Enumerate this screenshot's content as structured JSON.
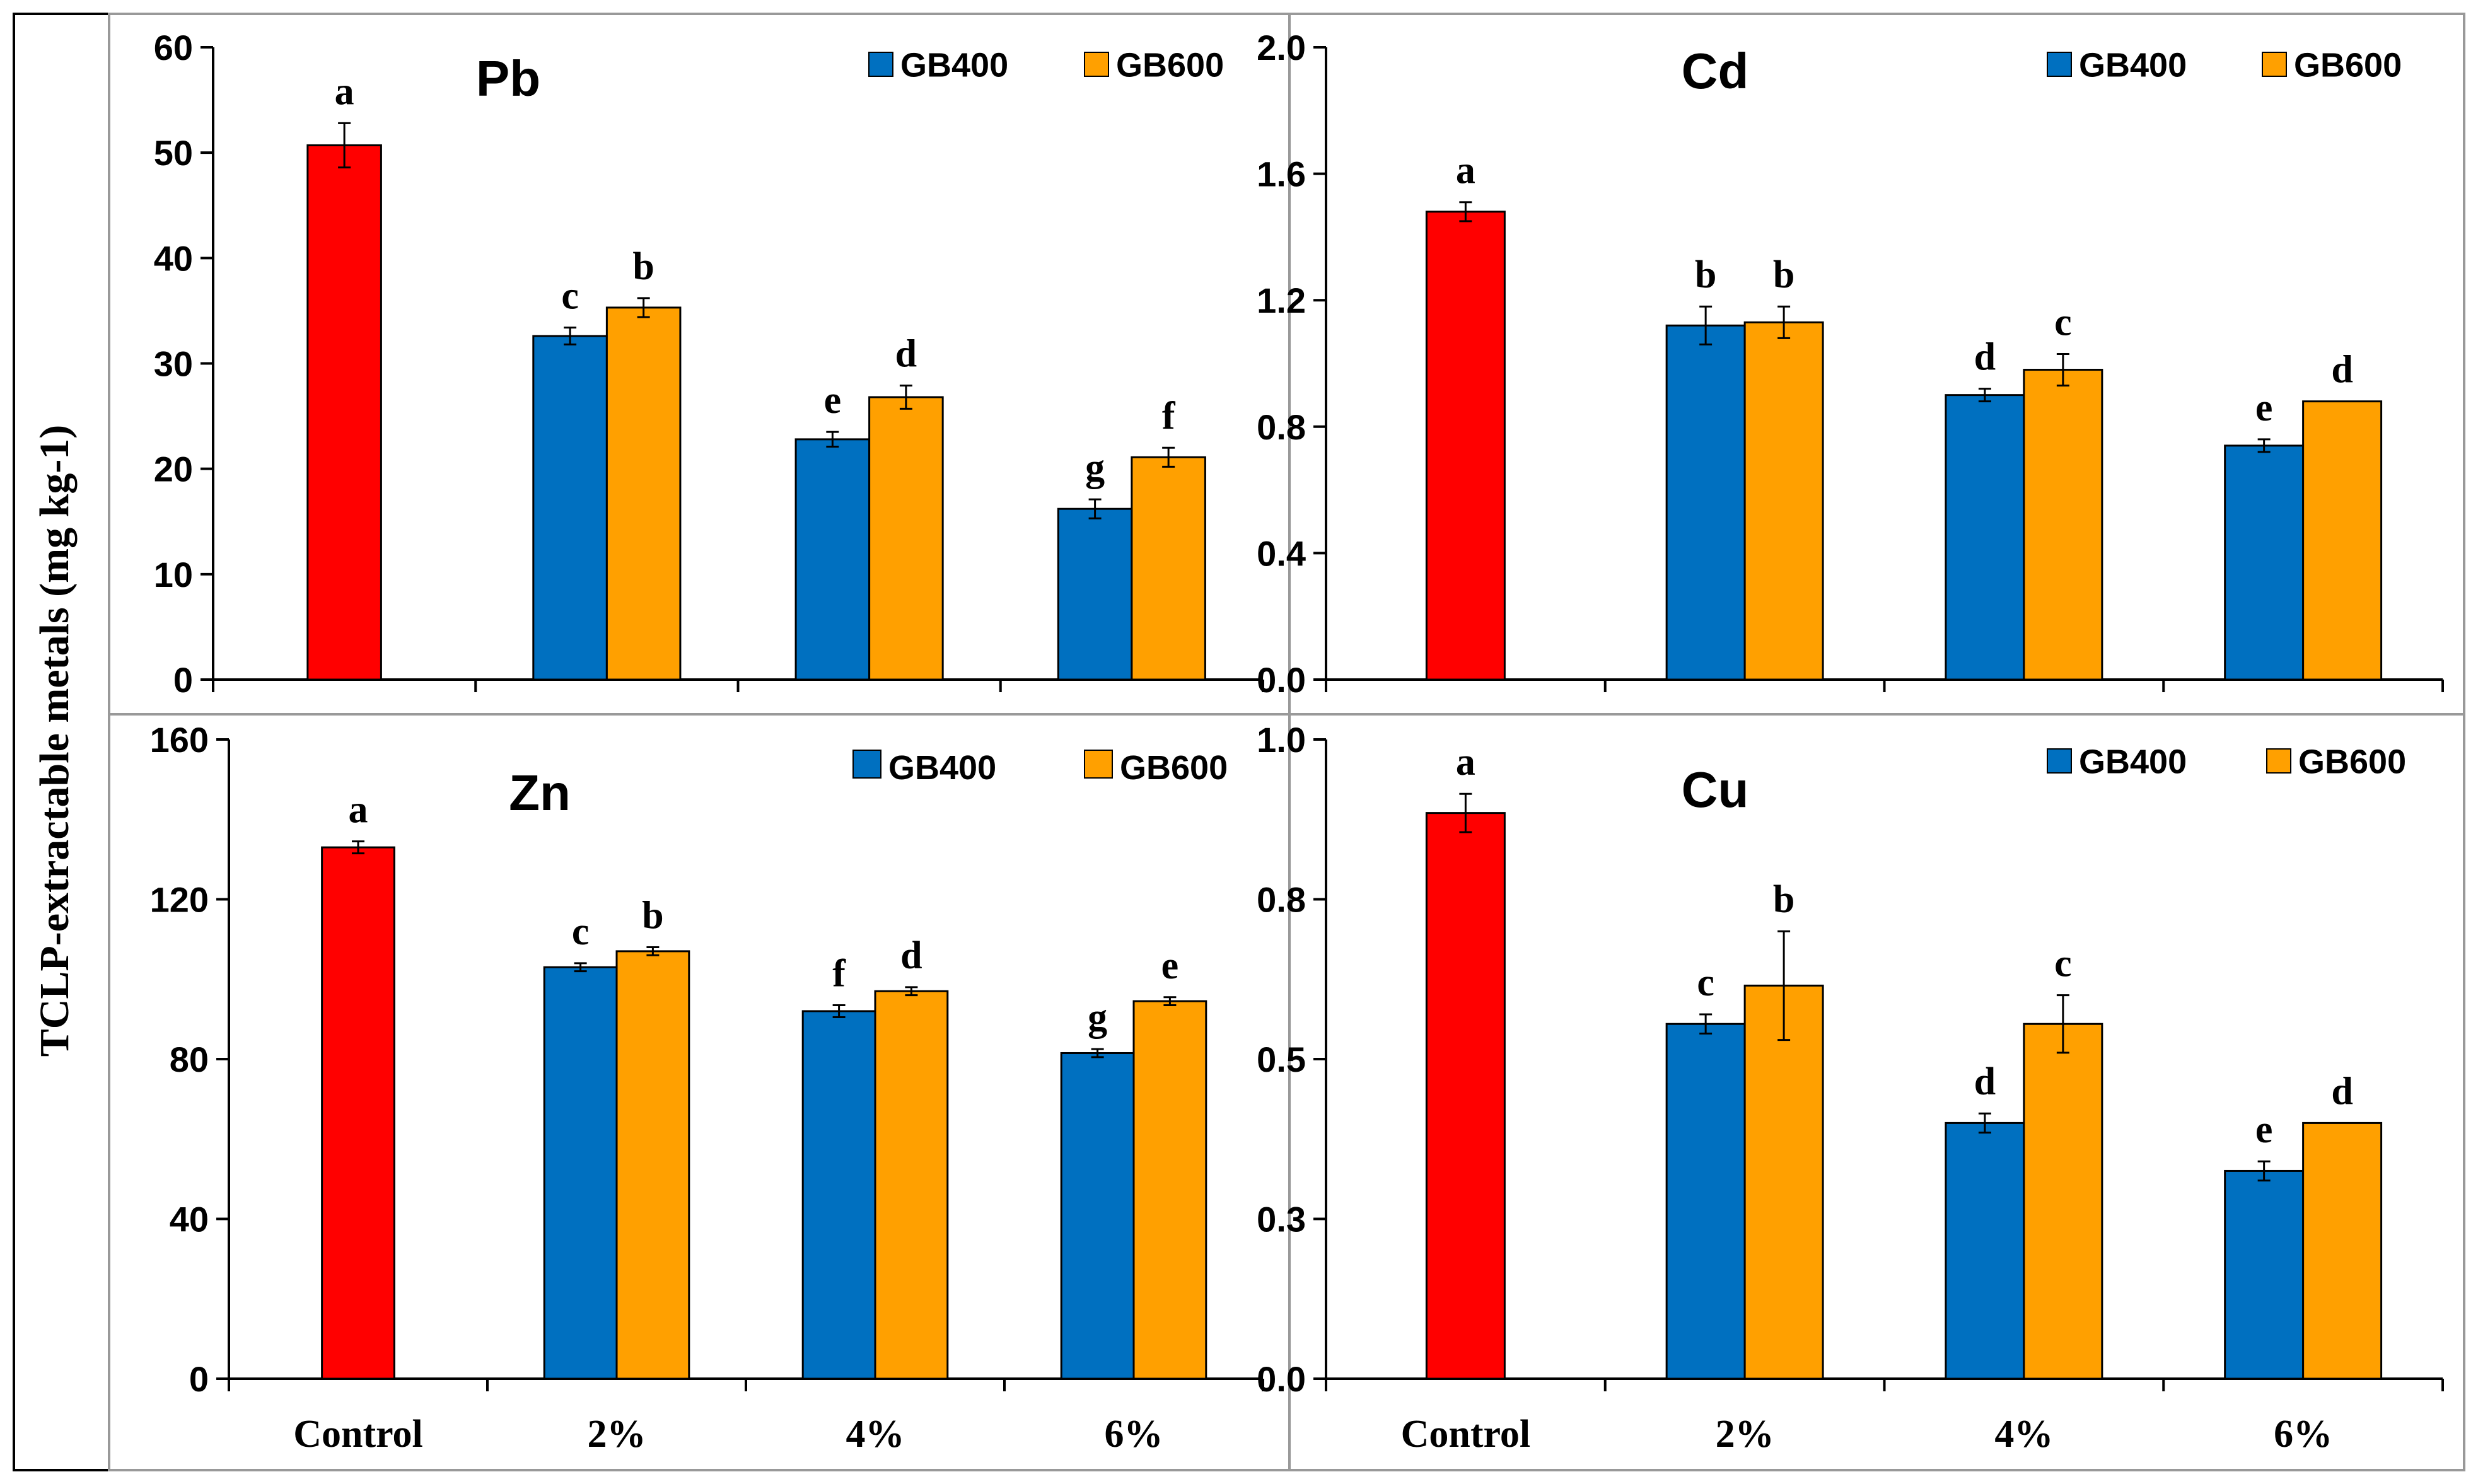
{
  "chart_data": {
    "type": "bar",
    "ylabel": "TCLP-extractable metals (mg kg-1)",
    "categories": [
      "Control",
      "2%",
      "4%",
      "6%"
    ],
    "legend": [
      "GB400",
      "GB600"
    ],
    "colors": {
      "control": "#ff0000",
      "GB400": "#0070c0",
      "GB600": "#ffa000"
    },
    "panels": [
      {
        "title": "Pb",
        "ylim": [
          0,
          60
        ],
        "ticks": [
          "0",
          "10",
          "20",
          "30",
          "40",
          "50",
          "60"
        ],
        "tick_values": [
          0,
          10,
          20,
          30,
          40,
          50,
          60
        ],
        "control": {
          "value": 50.7,
          "err": 2.1,
          "letter": "a"
        },
        "series": [
          {
            "name": "GB400",
            "values": [
              32.6,
              22.8,
              16.2
            ],
            "errors": [
              0.8,
              0.7,
              0.9
            ],
            "letters": [
              "c",
              "e",
              "g"
            ]
          },
          {
            "name": "GB600",
            "values": [
              35.3,
              26.8,
              21.1
            ],
            "errors": [
              0.9,
              1.1,
              0.9
            ],
            "letters": [
              "b",
              "d",
              "f"
            ]
          }
        ]
      },
      {
        "title": "Cd",
        "ylim": [
          0,
          2.0
        ],
        "ticks": [
          "0.0",
          "0.4",
          "0.8",
          "1.2",
          "1.6",
          "2.0"
        ],
        "tick_values": [
          0,
          0.4,
          0.8,
          1.2,
          1.6,
          2.0
        ],
        "control": {
          "value": 1.48,
          "err": 0.03,
          "letter": "a"
        },
        "series": [
          {
            "name": "GB400",
            "values": [
              1.12,
              0.9,
              0.74
            ],
            "errors": [
              0.06,
              0.02,
              0.02
            ],
            "letters": [
              "b",
              "d",
              "e"
            ]
          },
          {
            "name": "GB600",
            "values": [
              1.13,
              0.98,
              0.88
            ],
            "errors": [
              0.05,
              0.05,
              0.0
            ],
            "letters": [
              "b",
              "c",
              "d"
            ]
          }
        ]
      },
      {
        "title": "Zn",
        "ylim": [
          0,
          160
        ],
        "ticks": [
          "0",
          "40",
          "80",
          "120",
          "160"
        ],
        "tick_values": [
          0,
          40,
          80,
          120,
          160
        ],
        "control": {
          "value": 133,
          "err": 1.5,
          "letter": "a"
        },
        "series": [
          {
            "name": "GB400",
            "values": [
              103,
              92,
              81.5
            ],
            "errors": [
              1.0,
              1.5,
              1.0
            ],
            "letters": [
              "c",
              "f",
              "g"
            ]
          },
          {
            "name": "GB600",
            "values": [
              107,
              97,
              94.5
            ],
            "errors": [
              1.0,
              1.0,
              1.0
            ],
            "letters": [
              "b",
              "d",
              "e"
            ]
          }
        ]
      },
      {
        "title": "Cu",
        "ylim": [
          0,
          1.0
        ],
        "ticks": [
          "0.0",
          "0.3",
          "0.5",
          "0.8",
          "1.0"
        ],
        "tick_values": [
          0,
          0.25,
          0.5,
          0.75,
          1.0
        ],
        "control": {
          "value": 0.885,
          "err": 0.03,
          "letter": "a"
        },
        "series": [
          {
            "name": "GB400",
            "values": [
              0.555,
              0.4,
              0.325
            ],
            "errors": [
              0.015,
              0.015,
              0.015
            ],
            "letters": [
              "c",
              "d",
              "e"
            ]
          },
          {
            "name": "GB600",
            "values": [
              0.615,
              0.555,
              0.4
            ],
            "errors": [
              0.085,
              0.045,
              0.0
            ],
            "letters": [
              "b",
              "c",
              "d"
            ]
          }
        ]
      }
    ]
  }
}
